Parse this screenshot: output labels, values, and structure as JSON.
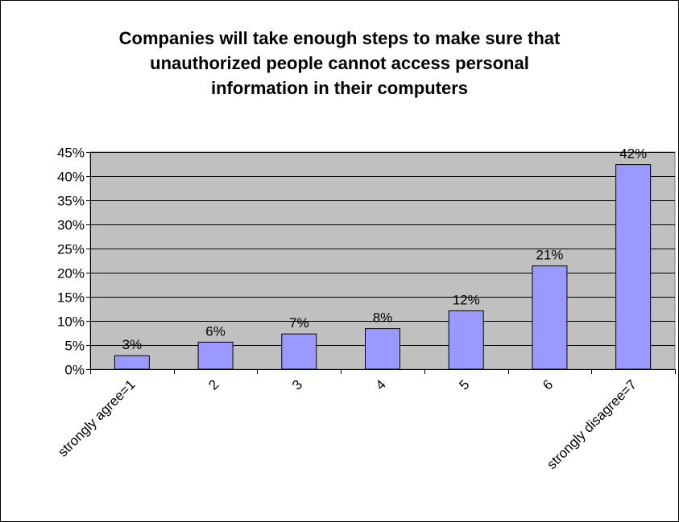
{
  "chart_data": {
    "type": "bar",
    "title_lines": [
      "Companies will take enough steps to make sure that",
      "unauthorized people cannot access personal",
      "information in their computers"
    ],
    "categories": [
      "strongly agree=1",
      "2",
      "3",
      "4",
      "5",
      "6",
      "strongly disagree=7"
    ],
    "values": [
      2.8,
      5.6,
      7.3,
      8.4,
      12.1,
      21.4,
      42.4
    ],
    "data_labels": [
      "3%",
      "6%",
      "7%",
      "8%",
      "12%",
      "21%",
      "42%"
    ],
    "ylim": [
      0,
      45
    ],
    "yticks": [
      0,
      5,
      10,
      15,
      20,
      25,
      30,
      35,
      40,
      45
    ],
    "ytick_labels": [
      "0%",
      "5%",
      "10%",
      "15%",
      "20%",
      "25%",
      "30%",
      "35%",
      "40%",
      "45%"
    ],
    "grid": true,
    "legend": "none",
    "colors": {
      "plot_background": "#c0c0c0",
      "bar_fill": "#9999ff",
      "bar_stroke": "#000000",
      "gridline": "#000000"
    }
  }
}
